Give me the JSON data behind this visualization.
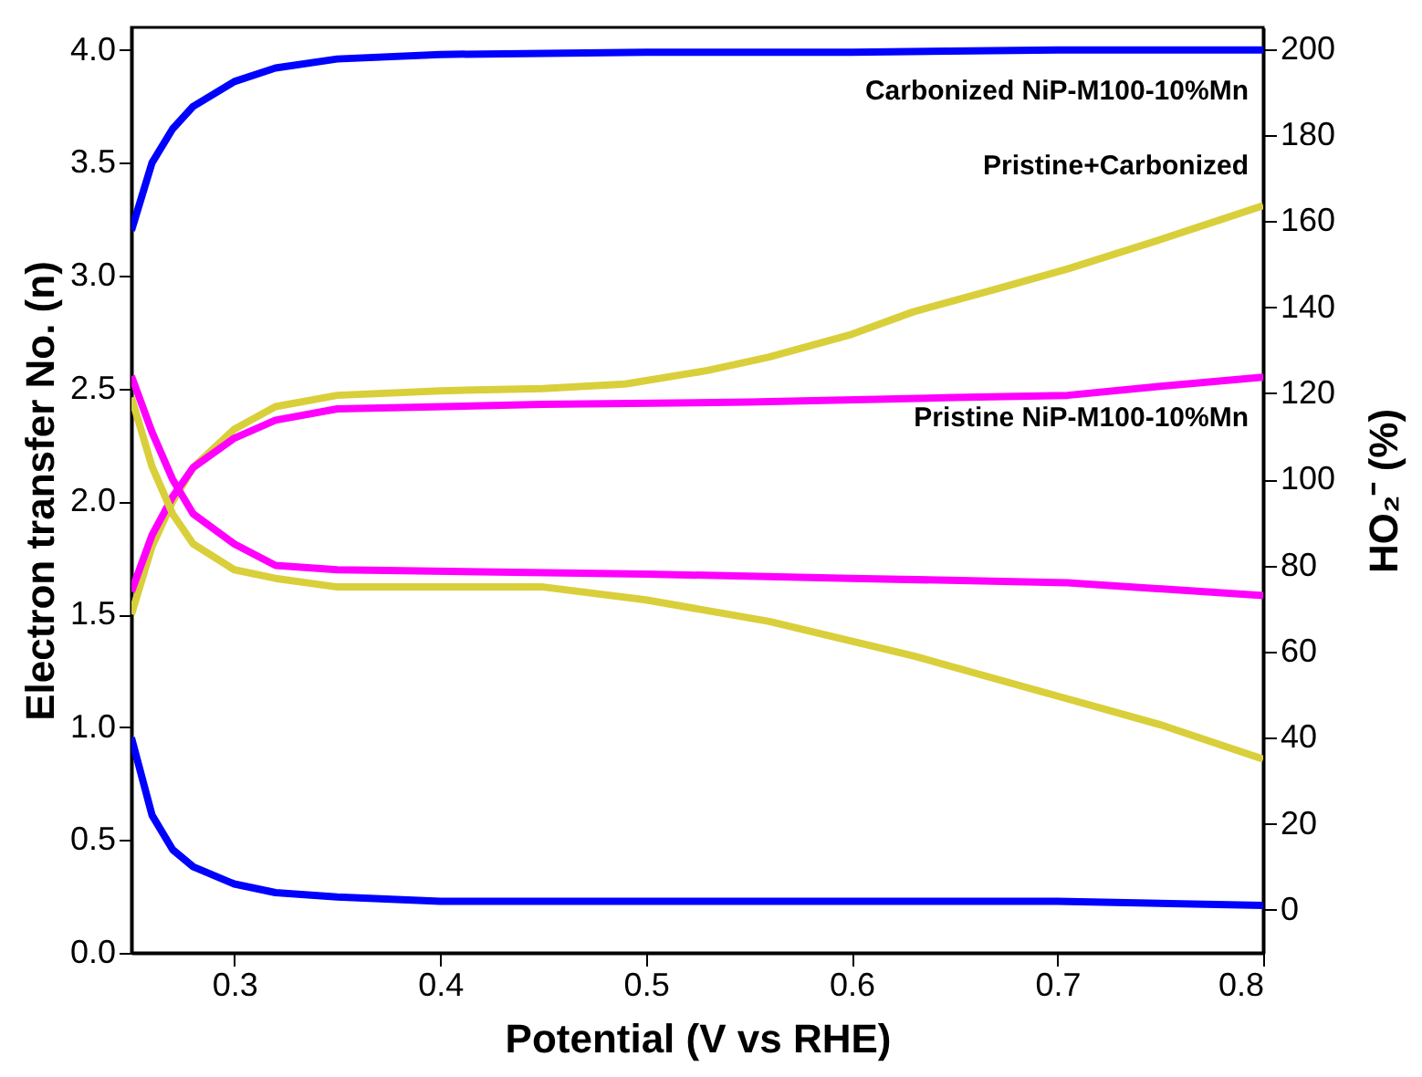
{
  "chart_data": {
    "type": "line",
    "xlabel": "Potential (V vs RHE)",
    "ylabel": "Electron transfer No. (n)",
    "y2label": "HO₂⁻ (%)",
    "xlim": [
      0.25,
      0.8
    ],
    "xticks": [
      0.3,
      0.4,
      0.5,
      0.6,
      0.7,
      0.8
    ],
    "ylim": [
      0,
      4.1
    ],
    "yticks": [
      {
        "value": 0,
        "label": "0.0"
      },
      0.5,
      {
        "value": 1,
        "label": "1.0"
      },
      1.5,
      {
        "value": 2,
        "label": "2.0"
      },
      2.5,
      {
        "value": 3,
        "label": "3.0"
      },
      3.5,
      {
        "value": 4,
        "label": "4.0"
      }
    ],
    "y2lim": [
      -10,
      205
    ],
    "y2ticks": [
      0,
      20,
      40,
      60,
      80,
      100,
      120,
      140,
      160,
      180,
      200
    ],
    "grid": false,
    "legend": false,
    "marker": "none",
    "line_style": "solid",
    "series": [
      {
        "name": "Carbonized NiP-M100-10%Mn",
        "color": "#0000ff",
        "axis": "y",
        "x": [
          0.25,
          0.26,
          0.27,
          0.28,
          0.3,
          0.32,
          0.35,
          0.4,
          0.5,
          0.6,
          0.7,
          0.8
        ],
        "values": [
          3.2,
          3.5,
          3.65,
          3.75,
          3.86,
          3.92,
          3.96,
          3.98,
          3.99,
          3.99,
          4.0,
          4.0
        ]
      },
      {
        "color": "#0000ff",
        "axis": "y2",
        "x": [
          0.25,
          0.26,
          0.27,
          0.28,
          0.3,
          0.32,
          0.35,
          0.4,
          0.5,
          0.6,
          0.7,
          0.8
        ],
        "values": [
          40,
          22,
          14,
          10,
          6,
          4,
          3,
          2,
          2,
          2,
          2,
          1
        ]
      },
      {
        "name": "Pristine+Carbonized",
        "color": "#d9cf3a",
        "axis": "y",
        "x": [
          0.25,
          0.26,
          0.27,
          0.28,
          0.3,
          0.32,
          0.35,
          0.4,
          0.45,
          0.49,
          0.53,
          0.56,
          0.6,
          0.63,
          0.67,
          0.705,
          0.75,
          0.8
        ],
        "values": [
          1.5,
          1.8,
          2.0,
          2.15,
          2.32,
          2.42,
          2.47,
          2.49,
          2.5,
          2.52,
          2.58,
          2.64,
          2.74,
          2.84,
          2.94,
          3.03,
          3.16,
          3.31
        ]
      },
      {
        "color": "#d9cf3a",
        "axis": "y2",
        "x": [
          0.25,
          0.26,
          0.27,
          0.28,
          0.3,
          0.32,
          0.35,
          0.4,
          0.45,
          0.5,
          0.56,
          0.63,
          0.705,
          0.75,
          0.8
        ],
        "values": [
          119,
          103,
          92,
          85,
          79,
          77,
          75,
          75,
          75,
          72,
          67,
          59,
          49,
          43,
          35
        ]
      },
      {
        "name": "Pristine NiP-M100-10%Mn",
        "color": "#ff00ff",
        "axis": "y",
        "x": [
          0.25,
          0.26,
          0.27,
          0.28,
          0.3,
          0.32,
          0.35,
          0.45,
          0.55,
          0.65,
          0.705,
          0.75,
          0.8
        ],
        "values": [
          1.6,
          1.85,
          2.02,
          2.15,
          2.28,
          2.36,
          2.41,
          2.43,
          2.44,
          2.46,
          2.47,
          2.51,
          2.55
        ]
      },
      {
        "color": "#ff00ff",
        "axis": "y2",
        "x": [
          0.25,
          0.26,
          0.27,
          0.28,
          0.3,
          0.32,
          0.35,
          0.5,
          0.6,
          0.705,
          0.8
        ],
        "values": [
          124,
          111,
          100,
          92,
          85,
          80,
          79,
          78,
          77,
          76,
          73
        ]
      }
    ]
  }
}
